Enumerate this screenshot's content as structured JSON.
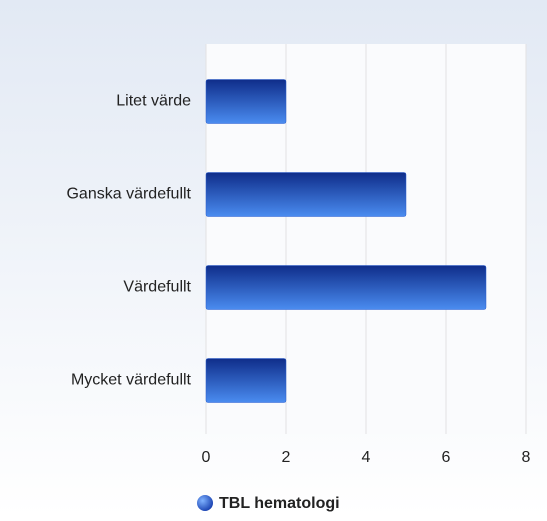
{
  "chart_data": {
    "type": "hbar",
    "categories": [
      "Litet värde",
      "Ganska värdefullt",
      "Värdefullt",
      "Mycket värdefullt"
    ],
    "series": [
      {
        "name": "TBL hematologi",
        "color": "#2a5fd0",
        "values": [
          2,
          5,
          7,
          2
        ]
      }
    ],
    "xlim": [
      0,
      8
    ],
    "xticks": [
      0,
      2,
      4,
      6,
      8
    ],
    "grid": true,
    "legend": "bottom"
  }
}
